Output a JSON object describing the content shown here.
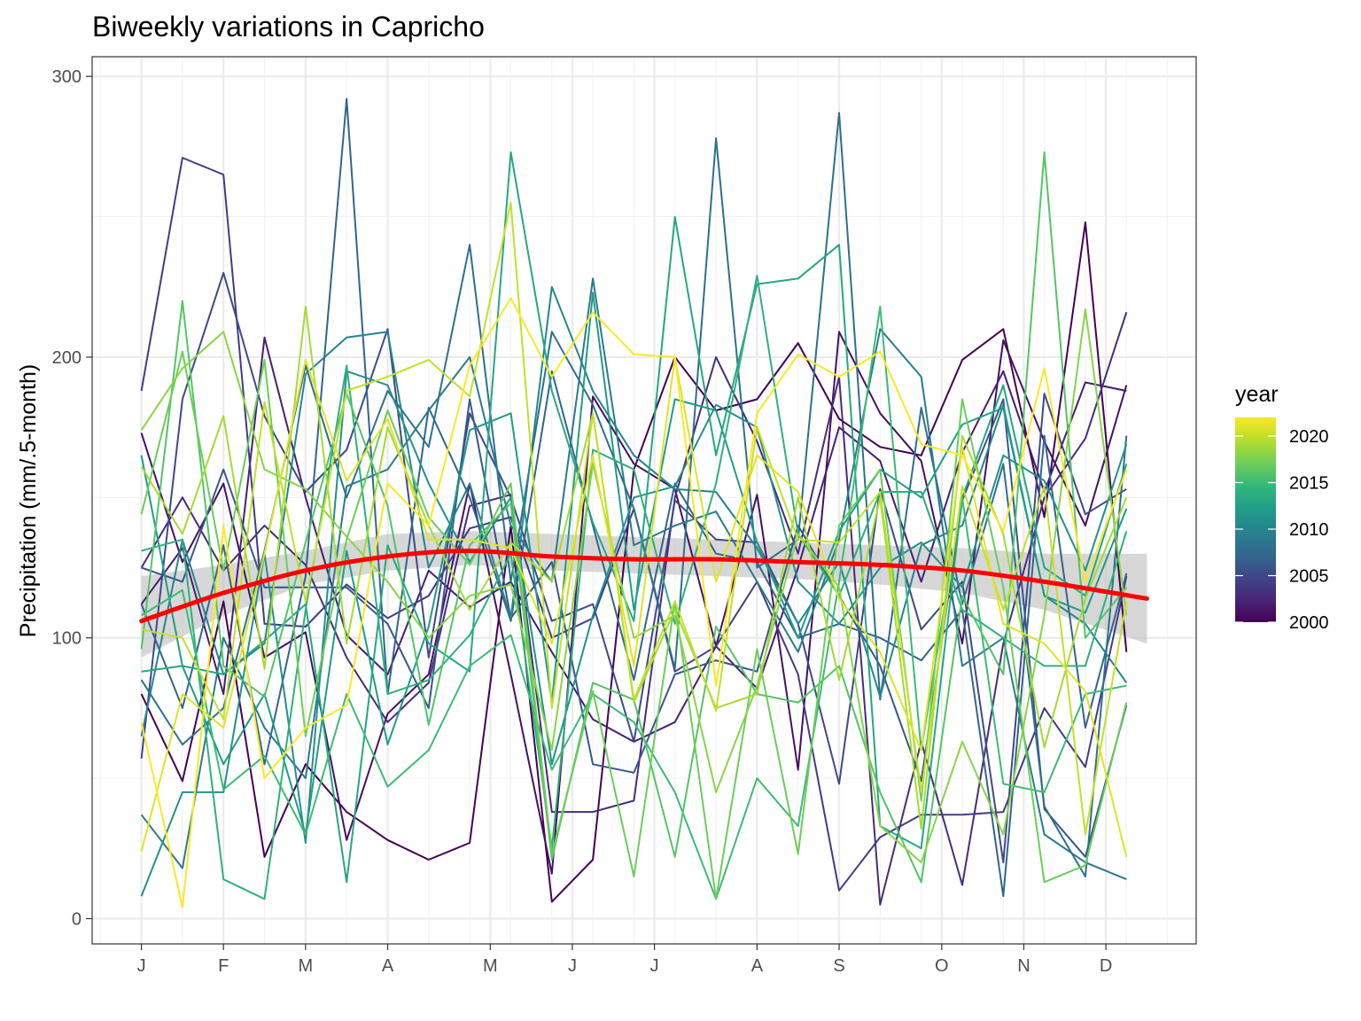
{
  "chart_data": {
    "type": "line",
    "title": "Biweekly variations in Capricho",
    "xlabel": "",
    "ylabel": "Precipitation (mm/.5-month)",
    "x_tick_labels": [
      "J",
      "F",
      "M",
      "A",
      "M",
      "J",
      "J",
      "A",
      "S",
      "O",
      "N",
      "D"
    ],
    "x_tick_positions": [
      0,
      2,
      4,
      6,
      8.5,
      10.5,
      12.5,
      15,
      17,
      19.5,
      21.5,
      23.5
    ],
    "xlim": [
      -1.2,
      25.7
    ],
    "y_ticks": [
      0,
      100,
      200,
      300
    ],
    "ylim": [
      -9,
      307
    ],
    "grid": true,
    "legend": {
      "title": "year",
      "placement": "right",
      "type": "colorbar",
      "range": [
        2000,
        2022
      ],
      "ticks": [
        2000,
        2005,
        2010,
        2015,
        2020
      ],
      "colors": [
        "#440154",
        "#482677",
        "#3f4788",
        "#31688e",
        "#26828e",
        "#1f9e89",
        "#35b779",
        "#6ece58",
        "#b5de2b",
        "#fde725"
      ]
    },
    "smooth": {
      "color": "#ff0000",
      "x": [
        0,
        2,
        4,
        6,
        8,
        10,
        12,
        14,
        16,
        18,
        20,
        22,
        24.5
      ],
      "y": [
        106,
        116,
        124,
        129,
        131,
        129,
        128,
        128,
        127,
        126,
        124,
        120,
        114
      ],
      "ci_lower": [
        93,
        108,
        119,
        124,
        126,
        124,
        123,
        122,
        121,
        119,
        116,
        110,
        98
      ],
      "ci_upper": [
        122,
        126,
        131,
        137,
        138,
        137,
        136,
        135,
        134,
        133,
        132,
        130,
        130
      ]
    },
    "series": [
      {
        "year": 2000,
        "values": [
          80,
          49,
          113,
          22,
          55,
          38,
          28,
          21,
          27,
          140,
          6,
          21,
          160,
          200,
          181,
          185,
          205,
          178,
          168,
          165,
          199,
          210,
          143,
          248,
          95
        ]
      },
      {
        "year": 2001,
        "values": [
          173,
          127,
          155,
          93,
          102,
          28,
          73,
          87,
          155,
          87,
          16,
          186,
          162,
          153,
          97,
          151,
          53,
          209,
          180,
          163,
          98,
          206,
          170,
          140,
          190
        ]
      },
      {
        "year": 2002,
        "values": [
          112,
          132,
          80,
          207,
          150,
          101,
          87,
          124,
          111,
          120,
          95,
          71,
          63,
          70,
          97,
          82,
          125,
          175,
          163,
          120,
          166,
          195,
          152,
          191,
          188
        ]
      },
      {
        "year": 2003,
        "values": [
          125,
          150,
          124,
          140,
          126,
          93,
          70,
          84,
          147,
          151,
          38,
          38,
          42,
          150,
          200,
          170,
          130,
          193,
          5,
          63,
          12,
          98,
          150,
          171,
          216
        ]
      },
      {
        "year": 2004,
        "values": [
          188,
          271,
          265,
          105,
          104,
          119,
          107,
          115,
          139,
          143,
          100,
          107,
          146,
          88,
          97,
          120,
          87,
          10,
          29,
          37,
          37,
          38,
          75,
          54,
          122
        ]
      },
      {
        "year": 2005,
        "values": [
          57,
          185,
          230,
          179,
          152,
          167,
          210,
          93,
          180,
          150,
          106,
          112,
          63,
          149,
          135,
          134,
          105,
          48,
          153,
          103,
          120,
          20,
          187,
          144,
          153
        ]
      },
      {
        "year": 2006,
        "values": [
          125,
          120,
          160,
          118,
          118,
          118,
          105,
          75,
          185,
          107,
          127,
          55,
          52,
          87,
          92,
          88,
          140,
          115,
          90,
          49,
          149,
          185,
          39,
          22,
          76
        ]
      },
      {
        "year": 2007,
        "values": [
          112,
          75,
          133,
          55,
          122,
          292,
          80,
          182,
          150,
          106,
          195,
          140,
          85,
          155,
          130,
          127,
          100,
          105,
          100,
          92,
          110,
          8,
          172,
          68,
          123
        ]
      },
      {
        "year": 2008,
        "values": [
          85,
          62,
          75,
          131,
          197,
          150,
          188,
          168,
          240,
          120,
          209,
          183,
          146,
          89,
          278,
          125,
          135,
          287,
          78,
          182,
          112,
          162,
          40,
          15,
          172
        ]
      },
      {
        "year": 2009,
        "values": [
          37,
          18,
          100,
          68,
          50,
          154,
          160,
          181,
          200,
          140,
          120,
          228,
          133,
          140,
          145,
          120,
          95,
          135,
          210,
          193,
          90,
          100,
          30,
          20,
          14
        ]
      },
      {
        "year": 2010,
        "values": [
          65,
          135,
          87,
          98,
          194,
          207,
          209,
          125,
          155,
          107,
          225,
          188,
          165,
          153,
          152,
          132,
          105,
          127,
          79,
          133,
          140,
          183,
          115,
          105,
          84
        ]
      },
      {
        "year": 2011,
        "values": [
          8,
          45,
          45,
          130,
          27,
          195,
          190,
          155,
          127,
          150,
          55,
          108,
          150,
          154,
          183,
          175,
          120,
          105,
          125,
          134,
          118,
          165,
          156,
          124,
          169
        ]
      },
      {
        "year": 2012,
        "values": [
          165,
          90,
          55,
          80,
          30,
          131,
          62,
          104,
          174,
          180,
          77,
          223,
          110,
          185,
          181,
          134,
          100,
          138,
          160,
          150,
          176,
          182,
          115,
          109,
          146
        ]
      },
      {
        "year": 2013,
        "values": [
          88,
          90,
          87,
          99,
          112,
          13,
          133,
          98,
          88,
          273,
          188,
          141,
          106,
          250,
          165,
          226,
          228,
          240,
          33,
          25,
          150,
          190,
          125,
          115,
          162
        ]
      },
      {
        "year": 2014,
        "values": [
          131,
          135,
          14,
          7,
          110,
          197,
          80,
          85,
          101,
          130,
          25,
          167,
          160,
          105,
          155,
          229,
          137,
          115,
          152,
          152,
          110,
          100,
          90,
          90,
          138
        ]
      },
      {
        "year": 2015,
        "values": [
          108,
          117,
          46,
          58,
          30,
          80,
          47,
          60,
          90,
          101,
          53,
          80,
          70,
          45,
          7,
          50,
          33,
          120,
          218,
          60,
          150,
          48,
          45,
          80,
          83
        ]
      },
      {
        "year": 2016,
        "values": [
          96,
          220,
          90,
          79,
          134,
          187,
          147,
          69,
          133,
          148,
          21,
          84,
          78,
          22,
          104,
          80,
          77,
          90,
          45,
          13,
          115,
          87,
          273,
          100,
          118
        ]
      },
      {
        "year": 2017,
        "values": [
          144,
          202,
          124,
          199,
          65,
          135,
          181,
          143,
          126,
          155,
          23,
          81,
          15,
          113,
          7,
          96,
          23,
          140,
          160,
          42,
          185,
          118,
          13,
          19,
          77
        ]
      },
      {
        "year": 2018,
        "values": [
          174,
          196,
          209,
          160,
          153,
          136,
          120,
          100,
          115,
          119,
          60,
          162,
          100,
          108,
          45,
          83,
          137,
          118,
          33,
          20,
          63,
          30,
          108,
          217,
          108
        ]
      },
      {
        "year": 2019,
        "values": [
          161,
          137,
          179,
          89,
          218,
          98,
          175,
          140,
          110,
          134,
          120,
          180,
          77,
          110,
          75,
          80,
          150,
          85,
          150,
          32,
          172,
          137,
          61,
          114,
          150
        ]
      },
      {
        "year": 2020,
        "values": [
          103,
          100,
          71,
          184,
          113,
          188,
          193,
          199,
          186,
          255,
          75,
          180,
          78,
          113,
          74,
          175,
          135,
          134,
          152,
          45,
          154,
          110,
          154,
          30,
          113
        ]
      },
      {
        "year": 2021,
        "values": [
          24,
          80,
          68,
          130,
          199,
          156,
          178,
          135,
          135,
          132,
          98,
          165,
          90,
          200,
          120,
          165,
          152,
          114,
          95,
          60,
          168,
          105,
          98,
          81,
          22
        ]
      },
      {
        "year": 2022,
        "values": [
          70,
          4,
          140,
          50,
          68,
          76,
          155,
          140,
          197,
          221,
          193,
          216,
          201,
          200,
          83,
          180,
          201,
          193,
          202,
          169,
          165,
          138,
          196,
          120,
          160
        ]
      }
    ]
  }
}
